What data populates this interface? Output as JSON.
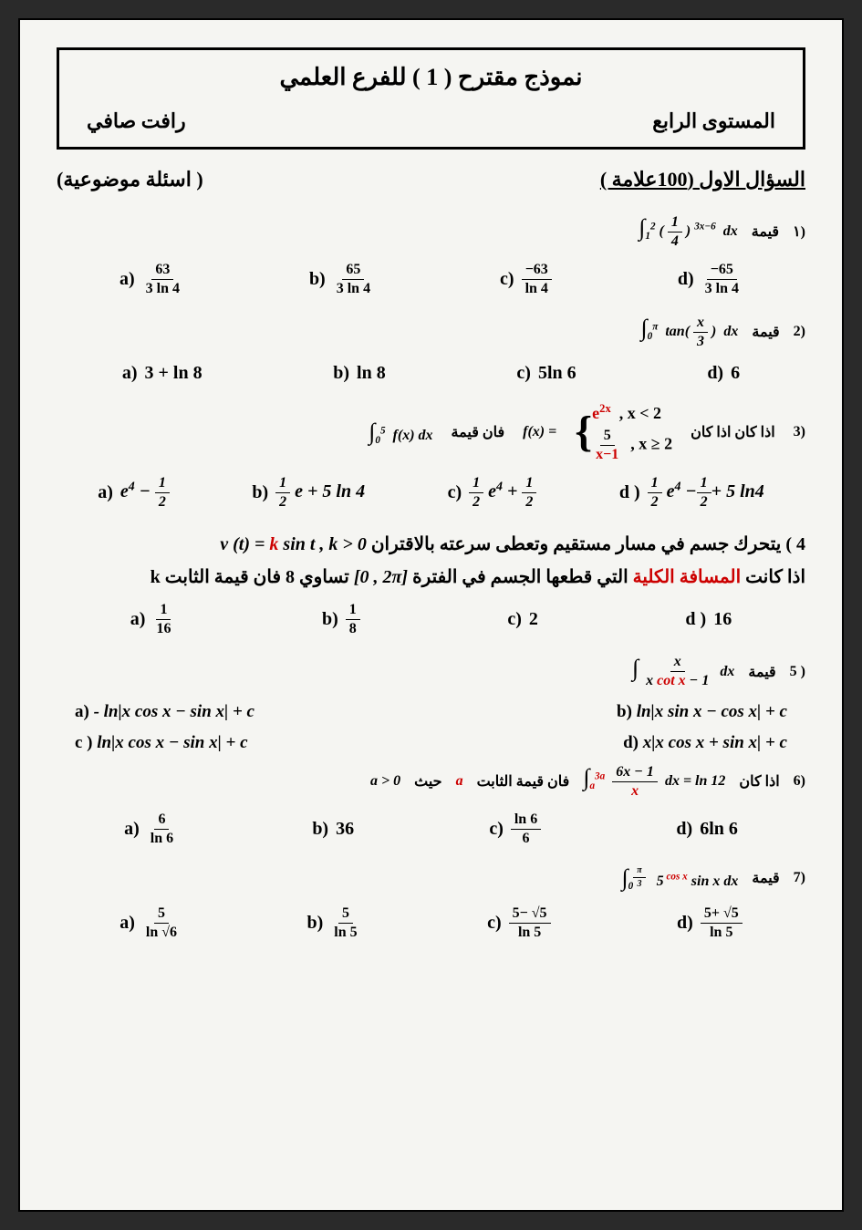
{
  "header": {
    "title": "نموذج مقترح ( 1 ) للفرع العلمي",
    "level": "المستوى الرابع",
    "author": "رافت صافي"
  },
  "section": {
    "right": "السؤال الاول  (100علامة )",
    "left": "( اسئلة موضوعية)"
  },
  "q1": {
    "num": "١)",
    "label": "قيمة",
    "expr_int": "∫",
    "expr_lower": "1",
    "expr_upper": "2",
    "expr_base_num": "1",
    "expr_base_den": "4",
    "expr_exp": "3x−6",
    "expr_dx": "dx",
    "a_label": "a)",
    "a_num": "63",
    "a_den": "3 ln 4",
    "b_label": "b)",
    "b_num": "65",
    "b_den": "3 ln 4",
    "c_label": "c)",
    "c_num": "−63",
    "c_den": "ln 4",
    "d_label": "d)",
    "d_num": "−65",
    "d_den": "3 ln 4"
  },
  "q2": {
    "num": "2)",
    "label": "قيمة",
    "expr": "∫₀π tan( x/3 ) dx",
    "int": "∫",
    "lower": "0",
    "upper": "π",
    "tan": "tan(",
    "x": "x",
    "den": "3",
    "close": ")",
    "dx": "dx",
    "a_label": "a)",
    "a": "3 + ln 8",
    "b_label": "b)",
    "b": "ln 8",
    "c_label": "c)",
    "c": "5ln 6",
    "d_label": "d)",
    "d": "6"
  },
  "q3": {
    "num": "3)",
    "text1": "اذا كان   اذا كان",
    "fx": "f(x) =",
    "p1_top": "e",
    "p1_exp": "2x",
    "p1_cond": ",   x < 2",
    "p2_num": "5",
    "p2_den": "x−1",
    "p2_cond": ",   x ≥ 2",
    "text2": "فان قيمة",
    "int": "∫",
    "lower": "0",
    "upper": "5",
    "fxdx": "f(x) dx",
    "a_label": "a)",
    "a_e": "e",
    "a_exp": "4",
    "a_rest": " − ",
    "a_num": "1",
    "a_den": "2",
    "b_label": "b)",
    "b_num": "1",
    "b_den": "2",
    "b_rest": " e + 5 ln 4",
    "c_label": "c)",
    "c_num1": "1",
    "c_den1": "2",
    "c_e": " e",
    "c_exp": "4",
    "c_plus": " + ",
    "c_num2": "1",
    "c_den2": "2",
    "d_label": "d )",
    "d_num1": "1",
    "d_den1": "2",
    "d_e": " e",
    "d_exp": "4",
    "d_minus": " −",
    "d_num2": "1",
    "d_den2": "2",
    "d_rest": "+ 5 ln4"
  },
  "q4": {
    "line1_pre": "4 ) يتحرك جسم في مسار مستقيم وتعطى سرعته بالاقتران  ",
    "line1_eq": "v (t) = ",
    "line1_k": "k",
    "line1_sint": " sin t  ,  k > 0",
    "line2_pre": "اذا كانت ",
    "line2_red": "المسافة الكلية",
    "line2_mid": " التي قطعها الجسم في الفترة ",
    "line2_interval": "[0 , 2π]",
    "line2_post": "  تساوي  8  فان قيمة الثابت  k",
    "a_label": "a)",
    "a_num": "1",
    "a_den": "16",
    "b_label": "b)",
    "b_num": "1",
    "b_den": "8",
    "c_label": "c)",
    "c": "2",
    "d_label": "d )",
    "d": "16"
  },
  "q5": {
    "num": "5 )",
    "label": "قيمة",
    "int": "∫",
    "frac_num": "x",
    "frac_den_pre": "x ",
    "frac_den_red": "cot x",
    "frac_den_post": " − 1",
    "dx": "dx",
    "a_label": "a)",
    "a": "  -  ln|x cos x −  sin x| + c",
    "b_label": "b)",
    "b": "   ln|x  sin x −   cos x| + c",
    "c_label": "c )",
    "c": "    ln|x cos x −  sin x| + c",
    "d_label": "d)",
    "d": "    x|x cos x +  sin x| + c"
  },
  "q6": {
    "num": "6)",
    "text1": "اذا كان",
    "int": "∫",
    "lower": "a",
    "upper": "3a",
    "frac_num": "6x − 1",
    "frac_den": "x",
    "dx": "dx",
    "eq": " =  ln 12",
    "text2": "فان قيمة الثابت",
    "a_var": "a",
    "text3": "حيث",
    "cond": "a > 0",
    "a_label": "a)",
    "a_num": "6",
    "a_den": "ln 6",
    "b_label": "b)",
    "b": "36",
    "c_label": "c)",
    "c_num": "ln 6",
    "c_den": "6",
    "d_label": "d)",
    "d": "6ln 6"
  },
  "q7": {
    "num": "7)",
    "label": "قيمة",
    "int": "∫",
    "lower": "0",
    "upper_num": "π",
    "upper_den": "3",
    "five": "5",
    "cosx": " cos x",
    "sinx": "  sin x dx",
    "a_label": "a)",
    "a_num": "5",
    "a_den_pre": "ln ",
    "a_den_sqrt": "√6",
    "b_label": "b)",
    "b_num": "5",
    "b_den": "ln 5",
    "c_label": "c)",
    "c_num": "5− √5",
    "c_den": "ln 5",
    "d_label": "d)",
    "d_num": "5+ √5",
    "d_den": "ln 5"
  }
}
